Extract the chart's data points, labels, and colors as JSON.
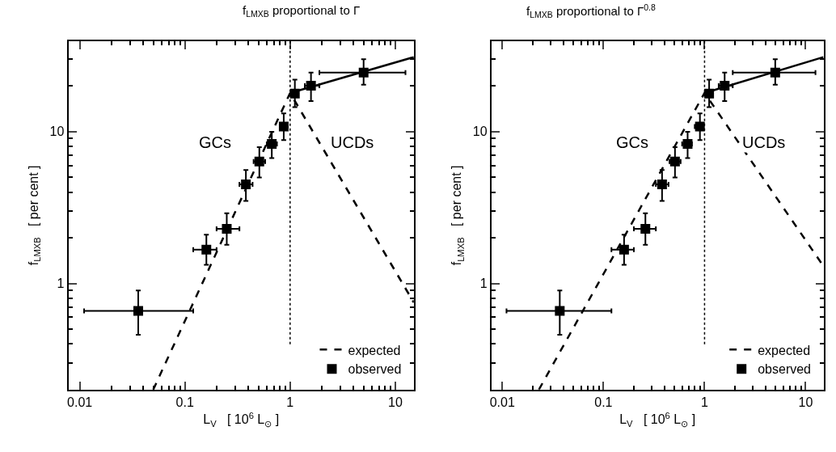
{
  "chart_data": [
    {
      "type": "line",
      "title": "f$_{LMXB}$ proportional to Γ",
      "xlabel": "L$_{V}$   [ 10$^{6}$ L$_{⊙}$ ]",
      "ylabel": "f$_{LMXB}$   [ per cent ]",
      "log": "xy",
      "xlim": [
        0.0078,
        15
      ],
      "ylim": [
        0.2,
        39.5
      ],
      "xticks": [
        {
          "value": 0.01,
          "label": "0.01"
        },
        {
          "value": 0.02,
          "label": null
        },
        {
          "value": 0.03,
          "label": null
        },
        {
          "value": 0.04,
          "label": null
        },
        {
          "value": 0.05,
          "label": null
        },
        {
          "value": 0.06,
          "label": null
        },
        {
          "value": 0.07,
          "label": null
        },
        {
          "value": 0.08,
          "label": null
        },
        {
          "value": 0.09,
          "label": null
        },
        {
          "value": 0.1,
          "label": "0.1"
        },
        {
          "value": 0.2,
          "label": null
        },
        {
          "value": 0.3,
          "label": null
        },
        {
          "value": 0.4,
          "label": null
        },
        {
          "value": 0.5,
          "label": null
        },
        {
          "value": 0.6,
          "label": null
        },
        {
          "value": 0.7,
          "label": null
        },
        {
          "value": 0.8,
          "label": null
        },
        {
          "value": 0.9,
          "label": null
        },
        1,
        {
          "value": 2,
          "label": null
        },
        {
          "value": 3,
          "label": null
        },
        {
          "value": 4,
          "label": null
        },
        {
          "value": 5,
          "label": null
        },
        {
          "value": 6,
          "label": null
        },
        {
          "value": 7,
          "label": null
        },
        {
          "value": 8,
          "label": null
        },
        {
          "value": 9,
          "label": null
        },
        10
      ],
      "yticks": [
        {
          "value": 0.2,
          "label": null
        },
        {
          "value": 0.3,
          "label": null
        },
        {
          "value": 0.4,
          "label": null
        },
        {
          "value": 0.5,
          "label": null
        },
        {
          "value": 0.6,
          "label": null
        },
        {
          "value": 0.7,
          "label": null
        },
        {
          "value": 0.8,
          "label": null
        },
        {
          "value": 0.9,
          "label": null
        },
        1,
        {
          "value": 2,
          "label": null
        },
        {
          "value": 3,
          "label": null
        },
        {
          "value": 4,
          "label": null
        },
        {
          "value": 5,
          "label": null
        },
        {
          "value": 6,
          "label": null
        },
        {
          "value": 7,
          "label": null
        },
        {
          "value": 8,
          "label": null
        },
        {
          "value": 9,
          "label": null
        },
        10,
        {
          "value": 20,
          "label": null
        },
        {
          "value": 30,
          "label": null
        }
      ],
      "legend": "bottom right",
      "annotations": [
        "GCs",
        "UCDs"
      ],
      "ref_lines": [
        {
          "axis": "x",
          "value": 1,
          "label": null,
          "color": "#000000",
          "line_style": "dotted"
        }
      ],
      "series": [
        {
          "name": "expected",
          "color": "#000000",
          "line_style": "dashed",
          "marker": "none",
          "x": [
            0.05,
            1,
            15
          ],
          "values": [
            0.2,
            18,
            0.75
          ]
        },
        {
          "name": "observed",
          "type": "scatter",
          "color": "#000000",
          "marker": "square",
          "line_style": "dotted",
          "x": [
            0.036,
            0.16,
            0.25,
            0.38,
            0.51,
            0.67,
            0.87,
            1.11,
            1.58,
            5.0
          ],
          "values": [
            0.66,
            1.67,
            2.29,
            4.5,
            6.36,
            8.3,
            10.8,
            17.8,
            20.1,
            24.5
          ],
          "errors": [
            [
              0.46,
              0.9
            ],
            [
              1.33,
              2.1
            ],
            [
              1.8,
              2.9
            ],
            [
              3.5,
              5.6
            ],
            [
              5.0,
              7.9
            ],
            [
              6.7,
              10
            ],
            [
              8.8,
              13.2
            ],
            [
              14.5,
              22
            ],
            [
              15.9,
              24.5
            ],
            [
              20.4,
              30
            ]
          ],
          "xerrors": [
            [
              0.011,
              0.12
            ],
            [
              0.12,
              0.2
            ],
            [
              0.2,
              0.33
            ],
            [
              0.33,
              0.44
            ],
            [
              0.45,
              0.58
            ],
            [
              0.6,
              0.75
            ],
            [
              0.8,
              0.95
            ],
            null,
            [
              1.38,
              1.9
            ],
            [
              1.9,
              12.5
            ]
          ]
        },
        {
          "color": "#000000",
          "line_style": "solid",
          "marker": "none",
          "x": [
            1,
            15
          ],
          "values": [
            18,
            31
          ]
        }
      ]
    },
    {
      "type": "line",
      "title": "f$_{LMXB}$ proportional to Γ$^{0.8}$",
      "xlabel": "L$_{V}$   [ 10$^{6}$ L$_{⊙}$ ]",
      "ylabel": "f$_{LMXB}$   [ per cent ]",
      "log": "xy",
      "xlim": [
        0.0078,
        15
      ],
      "ylim": [
        0.2,
        39.5
      ],
      "xticks": [
        {
          "value": 0.01,
          "label": "0.01"
        },
        {
          "value": 0.02,
          "label": null
        },
        {
          "value": 0.03,
          "label": null
        },
        {
          "value": 0.04,
          "label": null
        },
        {
          "value": 0.05,
          "label": null
        },
        {
          "value": 0.06,
          "label": null
        },
        {
          "value": 0.07,
          "label": null
        },
        {
          "value": 0.08,
          "label": null
        },
        {
          "value": 0.09,
          "label": null
        },
        {
          "value": 0.1,
          "label": "0.1"
        },
        {
          "value": 0.2,
          "label": null
        },
        {
          "value": 0.3,
          "label": null
        },
        {
          "value": 0.4,
          "label": null
        },
        {
          "value": 0.5,
          "label": null
        },
        {
          "value": 0.6,
          "label": null
        },
        {
          "value": 0.7,
          "label": null
        },
        {
          "value": 0.8,
          "label": null
        },
        {
          "value": 0.9,
          "label": null
        },
        1,
        {
          "value": 2,
          "label": null
        },
        {
          "value": 3,
          "label": null
        },
        {
          "value": 4,
          "label": null
        },
        {
          "value": 5,
          "label": null
        },
        {
          "value": 6,
          "label": null
        },
        {
          "value": 7,
          "label": null
        },
        {
          "value": 8,
          "label": null
        },
        {
          "value": 9,
          "label": null
        },
        10
      ],
      "yticks": [
        {
          "value": 0.2,
          "label": null
        },
        {
          "value": 0.3,
          "label": null
        },
        {
          "value": 0.4,
          "label": null
        },
        {
          "value": 0.5,
          "label": null
        },
        {
          "value": 0.6,
          "label": null
        },
        {
          "value": 0.7,
          "label": null
        },
        {
          "value": 0.8,
          "label": null
        },
        {
          "value": 0.9,
          "label": null
        },
        1,
        {
          "value": 2,
          "label": null
        },
        {
          "value": 3,
          "label": null
        },
        {
          "value": 4,
          "label": null
        },
        {
          "value": 5,
          "label": null
        },
        {
          "value": 6,
          "label": null
        },
        {
          "value": 7,
          "label": null
        },
        {
          "value": 8,
          "label": null
        },
        {
          "value": 9,
          "label": null
        },
        10,
        {
          "value": 20,
          "label": null
        },
        {
          "value": 30,
          "label": null
        }
      ],
      "legend": "bottom right",
      "annotations": [
        "GCs",
        "UCDs"
      ],
      "ref_lines": [
        {
          "axis": "x",
          "value": 1,
          "label": null,
          "color": "#000000",
          "line_style": "dotted"
        }
      ],
      "series": [
        {
          "name": "expected",
          "color": "#000000",
          "line_style": "dashed",
          "marker": "none",
          "x": [
            0.023,
            1,
            15
          ],
          "values": [
            0.2,
            18,
            1.3
          ]
        },
        {
          "name": "observed",
          "type": "scatter",
          "color": "#000000",
          "marker": "square",
          "line_style": "dotted",
          "x": [
            0.037,
            0.16,
            0.26,
            0.38,
            0.51,
            0.68,
            0.9,
            1.11,
            1.58,
            5.0
          ],
          "values": [
            0.66,
            1.67,
            2.29,
            4.5,
            6.36,
            8.3,
            10.8,
            17.8,
            20.1,
            24.5
          ],
          "errors": [
            [
              0.46,
              0.9
            ],
            [
              1.33,
              2.1
            ],
            [
              1.8,
              2.9
            ],
            [
              3.5,
              5.6
            ],
            [
              5.0,
              7.9
            ],
            [
              6.7,
              10
            ],
            [
              8.8,
              13.2
            ],
            [
              14.5,
              22
            ],
            [
              15.9,
              24.5
            ],
            [
              20.4,
              30
            ]
          ],
          "xerrors": [
            [
              0.011,
              0.12
            ],
            [
              0.12,
              0.2
            ],
            [
              0.2,
              0.33
            ],
            [
              0.33,
              0.44
            ],
            [
              0.45,
              0.58
            ],
            [
              0.6,
              0.75
            ],
            [
              0.8,
              0.95
            ],
            null,
            [
              1.38,
              1.9
            ],
            [
              1.9,
              12.5
            ]
          ]
        },
        {
          "color": "#000000",
          "line_style": "solid",
          "marker": "none",
          "x": [
            1,
            15
          ],
          "values": [
            18,
            31
          ]
        }
      ]
    }
  ]
}
